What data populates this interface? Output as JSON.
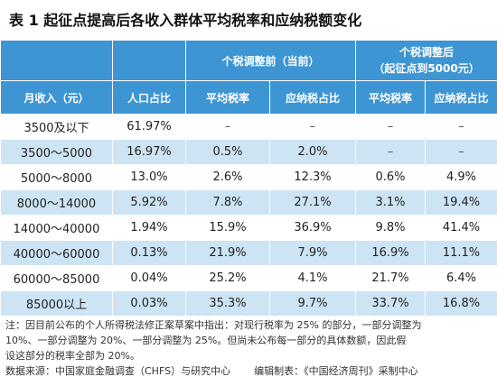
{
  "title": "表 1  起征点提高后各收入群体平均税率和应纳税额变化",
  "headers": {
    "group_before": "个税调整前（当前）",
    "group_after_line1": "个税调整后",
    "group_after_line2": "（起征点到5000元）",
    "col_income": "月收入（元）",
    "col_population": "人口占比",
    "col_avg_rate_before": "平均税率",
    "col_tax_share_before": "应纳税占比",
    "col_avg_rate_after": "平均税率",
    "col_tax_share_after": "应纳税占比"
  },
  "rows": [
    {
      "income": "3500及以下",
      "population": "61.97%",
      "avg_rate_before": "–",
      "tax_share_before": "–",
      "avg_rate_after": "–",
      "tax_share_after": "–"
    },
    {
      "income": "3500～5000",
      "population": "16.97%",
      "avg_rate_before": "0.5%",
      "tax_share_before": "2.0%",
      "avg_rate_after": "–",
      "tax_share_after": "–"
    },
    {
      "income": "5000～8000",
      "population": "13.0%",
      "avg_rate_before": "2.6%",
      "tax_share_before": "12.3%",
      "avg_rate_after": "0.6%",
      "tax_share_after": "4.9%"
    },
    {
      "income": "8000～14000",
      "population": "5.92%",
      "avg_rate_before": "7.8%",
      "tax_share_before": "27.1%",
      "avg_rate_after": "3.1%",
      "tax_share_after": "19.4%"
    },
    {
      "income": "14000～40000",
      "population": "1.94%",
      "avg_rate_before": "15.9%",
      "tax_share_before": "36.9%",
      "avg_rate_after": "9.8%",
      "tax_share_after": "41.4%"
    },
    {
      "income": "40000～60000",
      "population": "0.13%",
      "avg_rate_before": "21.9%",
      "tax_share_before": "7.9%",
      "avg_rate_after": "16.9%",
      "tax_share_after": "11.1%"
    },
    {
      "income": "60000～85000",
      "population": "0.04%",
      "avg_rate_before": "25.2%",
      "tax_share_before": "4.1%",
      "avg_rate_after": "21.7%",
      "tax_share_after": "6.4%"
    },
    {
      "income": "85000以上",
      "population": "0.03%",
      "avg_rate_before": "35.3%",
      "tax_share_before": "9.7%",
      "avg_rate_after": "33.7%",
      "tax_share_after": "16.8%"
    }
  ],
  "note_line1": "注：因目前公布的个人所得税法修正案草案中指出：对现行税率为 25% 的部分，一部分调整为",
  "note_line2": "10%、一部分调整为 20%、一部分调整为 25%。但尚未公布每一部分的具体数额，因此假",
  "note_line3": "设这部分的税率全部为 20%。",
  "source_data": "数据来源：中国家庭金融调查（CHFS）与研究中心",
  "source_editor": "编辑制表：《中国经济周刊》采制中心"
}
